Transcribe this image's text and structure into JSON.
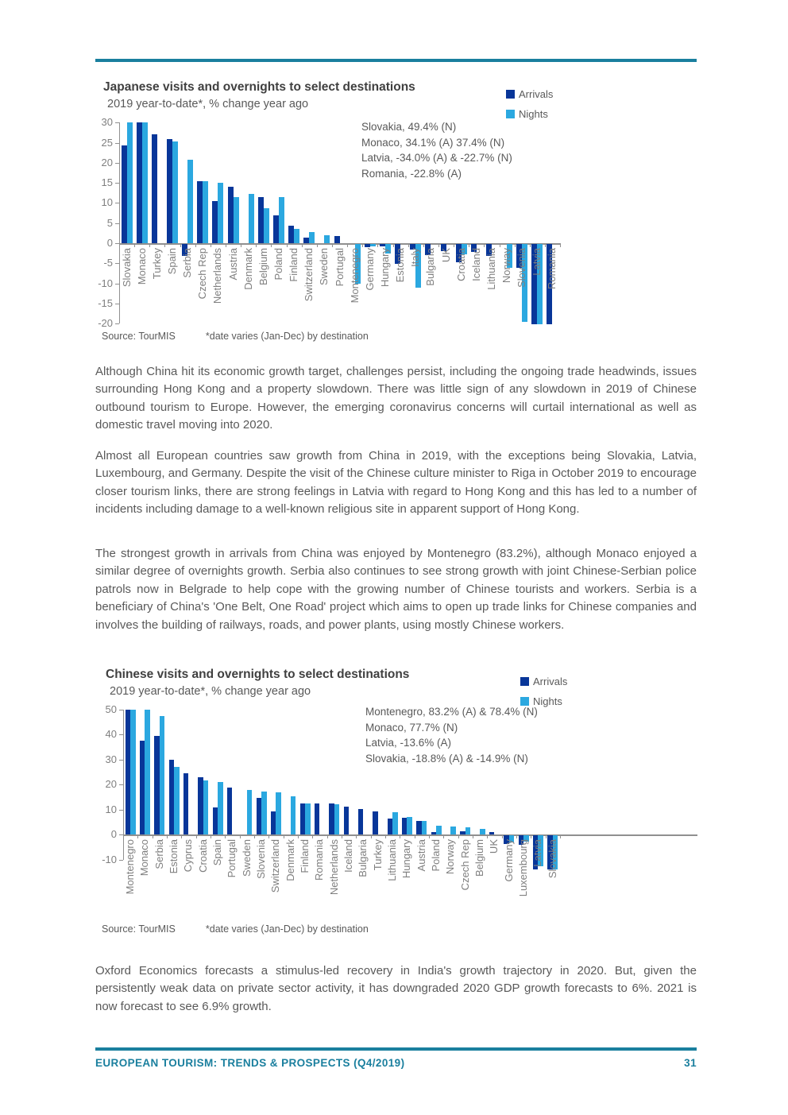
{
  "colors": {
    "arrivals": "#083699",
    "nights": "#2ba8e0",
    "accent_teal": "#1a7f9e"
  },
  "chart_data": [
    {
      "type": "bar",
      "title": "Japanese visits and overnights to select destinations",
      "subtitle": "2019 year-to-date*, % change year ago",
      "legend": [
        {
          "label": "Arrivals",
          "color": "#083699"
        },
        {
          "label": "Nights",
          "color": "#2ba8e0"
        }
      ],
      "legend_position": "top-right",
      "annotations": [
        "Slovakia, 49.4% (N)",
        "Monaco, 34.1% (A) 37.4% (N)",
        "Latvia, -34.0% (A) & -22.7% (N)",
        "Romania, -22.8% (A)"
      ],
      "categories": [
        "Slovakia",
        "Monaco",
        "Turkey",
        "Spain",
        "Serbia",
        "Czech Rep",
        "Netherlands",
        "Austria",
        "Denmark",
        "Belgium",
        "Poland",
        "Finland",
        "Switzerland",
        "Sweden",
        "Portugal",
        "Montenegro",
        "Germany",
        "Hungary",
        "Estonia",
        "Italy",
        "Bulgaria",
        "UK",
        "Croatia",
        "Iceland",
        "Lithuania",
        "Norway",
        "Slovenia",
        "Latvia",
        "Romania"
      ],
      "series": [
        {
          "name": "Arrivals",
          "values": [
            24.4,
            34.1,
            27.0,
            25.8,
            -3.0,
            15.4,
            10.5,
            14.0,
            null,
            11.5,
            6.9,
            4.3,
            1.3,
            null,
            1.7,
            null,
            -0.8,
            -0.5,
            -5.0,
            -1.3,
            -2.8,
            -1.8,
            -4.6,
            -2.0,
            -3.0,
            null,
            -6.0,
            -34.0,
            -22.8
          ]
        },
        {
          "name": "Nights",
          "values": [
            49.4,
            37.4,
            null,
            25.3,
            20.8,
            15.4,
            15.1,
            11.5,
            12.2,
            8.7,
            11.4,
            3.6,
            2.8,
            2.0,
            null,
            -9.9,
            -0.5,
            -2.3,
            null,
            -10.8,
            null,
            null,
            -2.6,
            null,
            null,
            -6.0,
            -19.4,
            -22.7,
            null
          ]
        }
      ],
      "ylim": [
        -20,
        30
      ],
      "yticks": [
        30,
        25,
        20,
        15,
        10,
        5,
        0,
        -5,
        -10,
        -15,
        -20
      ],
      "grid": false,
      "source": "Source: TourMIS",
      "footnote": "*date varies (Jan-Dec) by destination"
    },
    {
      "type": "bar",
      "title": "Chinese visits and overnights to select destinations",
      "subtitle": "2019 year-to-date*, % change year ago",
      "legend": [
        {
          "label": "Arrivals",
          "color": "#083699"
        },
        {
          "label": "Nights",
          "color": "#2ba8e0"
        }
      ],
      "legend_position": "top-right",
      "annotations": [
        "Montenegro, 83.2% (A) & 78.4% (N)",
        "Monaco, 77.7% (N)",
        "Latvia, -13.6% (A)",
        "Slovakia, -18.8% (A) & -14.9% (N)"
      ],
      "categories": [
        "Montenegro",
        "Monaco",
        "Serbia",
        "Estonia",
        "Cyprus",
        "Croatia",
        "Spain",
        "Portugal",
        "Sweden",
        "Slovenia",
        "Switzerland",
        "Denmark",
        "Finland",
        "Romania",
        "Netherlands",
        "Iceland",
        "Bulgaria",
        "Turkey",
        "Lithuania",
        "Hungary",
        "Austria",
        "Poland",
        "Norway",
        "Czech Rep",
        "Belgium",
        "UK",
        "Germany",
        "Luxembourg",
        "Latvia",
        "Slovakia"
      ],
      "series": [
        {
          "name": "Arrivals",
          "values": [
            83.2,
            37.4,
            39.3,
            29.9,
            24.6,
            22.8,
            10.8,
            18.8,
            null,
            14.5,
            9.3,
            null,
            12.5,
            12.4,
            12.5,
            11.1,
            10.1,
            9.1,
            6.2,
            6.7,
            5.3,
            0.9,
            null,
            1.4,
            null,
            1.1,
            -3.5,
            -3.7,
            -13.6,
            -18.8
          ]
        },
        {
          "name": "Nights",
          "values": [
            78.4,
            77.7,
            47.2,
            27.1,
            null,
            21.6,
            21.0,
            null,
            17.9,
            17.2,
            16.8,
            15.2,
            12.5,
            null,
            12.0,
            null,
            null,
            null,
            9.0,
            7.0,
            5.3,
            3.4,
            3.2,
            2.8,
            2.3,
            null,
            -3.0,
            -2.5,
            -12.5,
            -14.9
          ]
        }
      ],
      "ylim": [
        -10,
        50
      ],
      "yticks": [
        50,
        40,
        30,
        20,
        10,
        0,
        -10
      ],
      "grid": false,
      "source": "Source: TourMIS",
      "footnote": "*date varies (Jan-Dec) by destination"
    }
  ],
  "paragraphs": {
    "p1": "Although China hit its economic growth target, challenges persist, including the ongoing trade head­winds, issues surrounding Hong Kong and a property slowdown. There was little sign of any slowdown in 2019 of Chinese outbound tourism to Europe. However, the emerging coronavirus concerns will curtail international as well as domestic travel moving into 2020.",
    "p2": "Almost all European countries saw growth from China in 2019, with the exceptions being Slovakia, Latvia, Luxembourg, and Germany. Despite the visit of the Chinese culture minister to Riga in October 2019 to encourage closer tourism links, there are strong feelings in Latvia with regard to Hong Kong and this has led to a number of incidents including damage to a well-known religious site in apparent support of Hong Kong.",
    "p3": "The strongest growth in arrivals from China was enjoyed by Montenegro (83.2%), although Monaco enjoyed a similar degree of overnights growth. Serbia also continues to see strong growth with joint Chinese-Serbian police patrols now in Belgrade to help cope with the growing number of Chinese tourists and workers. Serbia is a beneficiary of China's 'One Belt, One Road' project which aims to open up trade links for Chinese companies and involves the building of railways, roads, and power plants, using mostly Chinese workers.",
    "p4": "Oxford Economics forecasts a stimulus-led recovery in India's growth trajectory in 2020. But, given the persistently weak data on private sector activity, it has downgraded 2020 GDP growth forecasts to 6%. 2021 is now forecast to see 6.9% growth."
  },
  "footer": {
    "title": "EUROPEAN TOURISM: TRENDS & PROSPECTS (Q4/2019)",
    "page_number": "31"
  }
}
